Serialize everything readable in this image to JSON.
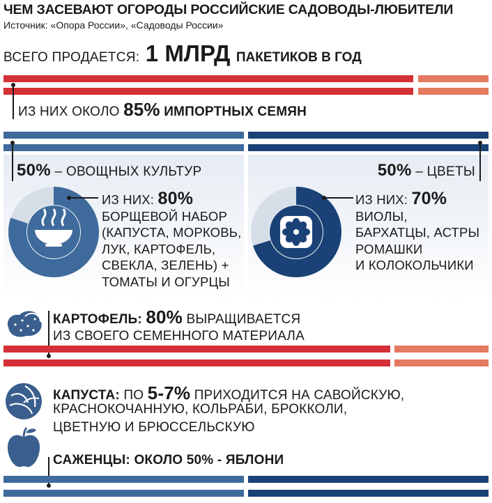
{
  "header": {
    "title": "Чем засевают огороды российские садоводы-любители",
    "source": "Источник: «Опора России», «Садоводы России»"
  },
  "total": {
    "label": "Всего продается:",
    "value": "1 млрд",
    "suffix": "пакетиков в год"
  },
  "import": {
    "prefix": "из них около",
    "percent": "85%",
    "suffix": "импортных семян",
    "share": 0.85
  },
  "vegetables": {
    "percent": "50%",
    "label": "– овощных культур",
    "share": 0.5,
    "of_them": "из них:",
    "of_percent": "80%",
    "donut_share": 0.8,
    "lines": [
      "борщевой набор",
      "(капуста, морковь,",
      "лук, картофель,",
      "свекла, зелень) +",
      "томаты и огурцы"
    ],
    "icon": "soup-bowl-icon"
  },
  "flowers": {
    "percent": "50%",
    "label": "– цветы",
    "of_them": "из них:",
    "of_percent": "70%",
    "donut_share": 0.7,
    "lines": [
      "виолы,",
      "бархатцы, астры",
      "ромашки",
      "и колокольчики"
    ],
    "icon": "flower-icon"
  },
  "potato": {
    "label": "Картофель:",
    "percent": "80%",
    "line1_suffix": "выращивается",
    "line2": "из своего семенного материала",
    "share": 0.8,
    "icon": "potato-icon"
  },
  "cabbage": {
    "label": "Капуста:",
    "prefix": "по",
    "percent": "5-7%",
    "line1_suffix": "приходится на савойскую,",
    "line2": "краснокочанную, кольраби, брокколи,",
    "line3": "цветную и брюссельскую",
    "icon": "cabbage-icon"
  },
  "seedlings": {
    "label": "Саженцы:",
    "text": "около 50% - яблони",
    "share": 0.5,
    "icon": "apple-icon"
  },
  "colors": {
    "red": "#d33136",
    "salmon": "#e47a5f",
    "blue_light": "#3e6a9c",
    "blue_dark": "#1a4276"
  }
}
